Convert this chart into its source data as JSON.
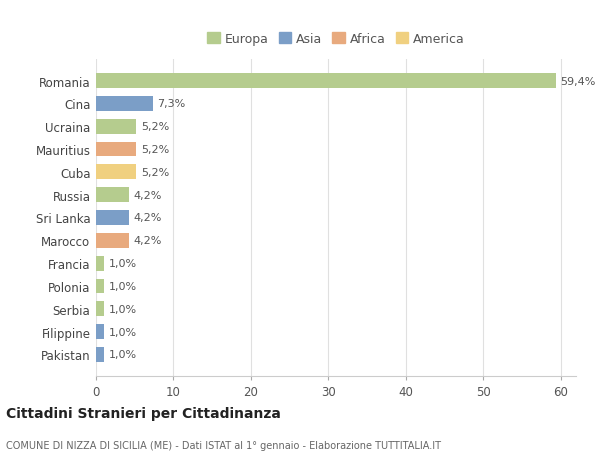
{
  "countries": [
    "Romania",
    "Cina",
    "Ucraina",
    "Mauritius",
    "Cuba",
    "Russia",
    "Sri Lanka",
    "Marocco",
    "Francia",
    "Polonia",
    "Serbia",
    "Filippine",
    "Pakistan"
  ],
  "values": [
    59.4,
    7.3,
    5.2,
    5.2,
    5.2,
    4.2,
    4.2,
    4.2,
    1.0,
    1.0,
    1.0,
    1.0,
    1.0
  ],
  "labels": [
    "59,4%",
    "7,3%",
    "5,2%",
    "5,2%",
    "5,2%",
    "4,2%",
    "4,2%",
    "4,2%",
    "1,0%",
    "1,0%",
    "1,0%",
    "1,0%",
    "1,0%"
  ],
  "continents": [
    "Europa",
    "Asia",
    "Europa",
    "Africa",
    "America",
    "Europa",
    "Asia",
    "Africa",
    "Europa",
    "Europa",
    "Europa",
    "Asia",
    "Asia"
  ],
  "continent_colors": {
    "Europa": "#b5cc8e",
    "Asia": "#7b9ec7",
    "Africa": "#e8aa7e",
    "America": "#f0d080"
  },
  "legend_order": [
    "Europa",
    "Asia",
    "Africa",
    "America"
  ],
  "title": "Cittadini Stranieri per Cittadinanza",
  "subtitle": "COMUNE DI NIZZA DI SICILIA (ME) - Dati ISTAT al 1° gennaio - Elaborazione TUTTITALIA.IT",
  "xlim": [
    0,
    62
  ],
  "xticks": [
    0,
    10,
    20,
    30,
    40,
    50,
    60
  ],
  "background_color": "#ffffff",
  "grid_color": "#e0e0e0"
}
